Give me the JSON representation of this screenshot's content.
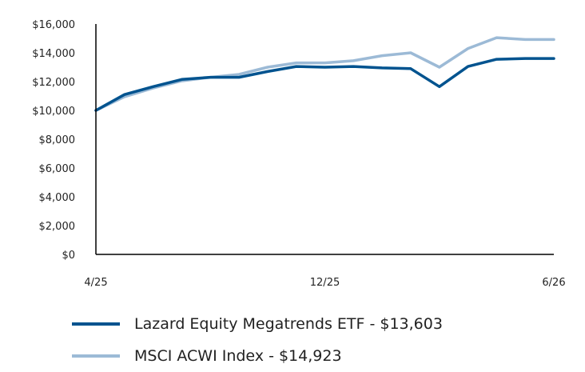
{
  "chart_data": {
    "type": "line",
    "title": "",
    "xlabel": "",
    "ylabel": "",
    "ylim": [
      0,
      16000
    ],
    "yticks": [
      {
        "value": 0,
        "label": "$0"
      },
      {
        "value": 2000,
        "label": "$2,000"
      },
      {
        "value": 4000,
        "label": "$4,000"
      },
      {
        "value": 6000,
        "label": "$6,000"
      },
      {
        "value": 8000,
        "label": "$8,000"
      },
      {
        "value": 10000,
        "label": "$10,000"
      },
      {
        "value": 12000,
        "label": "$12,000"
      },
      {
        "value": 14000,
        "label": "$14,000"
      },
      {
        "value": 16000,
        "label": "$16,000"
      }
    ],
    "x": [
      "4/25",
      "",
      "",
      "",
      "",
      "",
      "",
      "",
      "12/25",
      "",
      "",
      "",
      "",
      "",
      "",
      "",
      "6/26"
    ],
    "xtick_labels": [
      "4/25",
      "12/25",
      "6/26"
    ],
    "series": [
      {
        "name": "Lazard Equity Megatrends ETF - $13,603",
        "color": "#00538f",
        "values": [
          10000,
          11100,
          11650,
          12150,
          12300,
          12300,
          12700,
          13050,
          13000,
          13050,
          12950,
          12900,
          11650,
          13050,
          13550,
          13603,
          13603
        ]
      },
      {
        "name": "MSCI ACWI Index - $14,923",
        "color": "#9cbad6",
        "values": [
          10000,
          10950,
          11550,
          12050,
          12300,
          12500,
          13000,
          13300,
          13300,
          13450,
          13800,
          14000,
          13000,
          14300,
          15050,
          14923,
          14923
        ]
      }
    ],
    "grid": false,
    "legend_position": "bottom-left"
  }
}
